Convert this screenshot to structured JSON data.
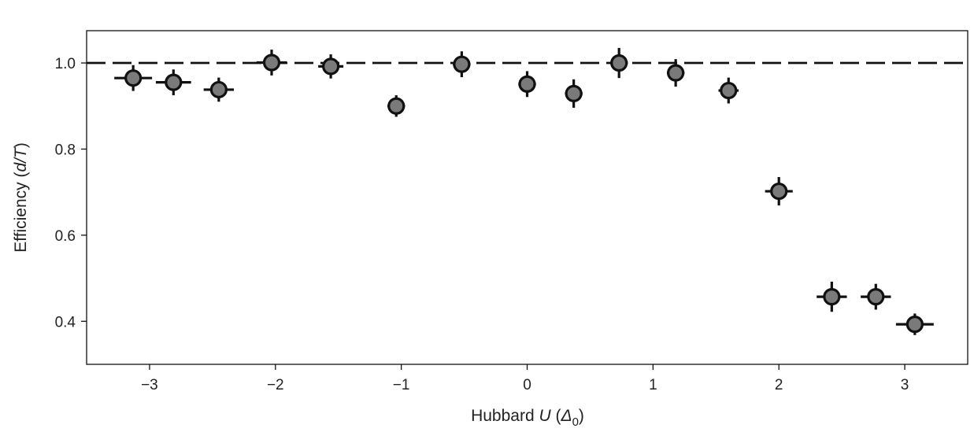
{
  "chart_data": {
    "type": "scatter",
    "xlabel": {
      "prefix": "Hubbard ",
      "var": "U",
      "open": " (",
      "unit_var": "Δ",
      "unit_sub": "0",
      "close": ")"
    },
    "ylabel": {
      "prefix": "Efficiency (",
      "var": "d/T",
      "close": ")"
    },
    "xlim": [
      -3.5,
      3.5
    ],
    "ylim": [
      0.3,
      1.075
    ],
    "xticks": [
      -3,
      -2,
      -1,
      0,
      1,
      2,
      3
    ],
    "xtick_labels": [
      "−3",
      "−2",
      "−1",
      "0",
      "1",
      "2",
      "3"
    ],
    "yticks": [
      0.4,
      0.6,
      0.8,
      1.0
    ],
    "ytick_labels": [
      "0.4",
      "0.6",
      "0.8",
      "1.0"
    ],
    "reference_line": {
      "y": 1.0,
      "style": "dashed"
    },
    "grid": false,
    "marker_fill": "#7a7a7a",
    "marker_edge": "#111111",
    "points": [
      {
        "x": -3.13,
        "y": 0.965,
        "xerr": 0.15,
        "yerr": 0.03
      },
      {
        "x": -2.81,
        "y": 0.955,
        "xerr": 0.14,
        "yerr": 0.03
      },
      {
        "x": -2.45,
        "y": 0.938,
        "xerr": 0.12,
        "yerr": 0.028
      },
      {
        "x": -2.03,
        "y": 1.001,
        "xerr": 0.12,
        "yerr": 0.03
      },
      {
        "x": -1.56,
        "y": 0.992,
        "xerr": 0.1,
        "yerr": 0.028
      },
      {
        "x": -1.04,
        "y": 0.9,
        "xerr": 0.07,
        "yerr": 0.025
      },
      {
        "x": -0.52,
        "y": 0.997,
        "xerr": 0.07,
        "yerr": 0.03
      },
      {
        "x": 0.0,
        "y": 0.951,
        "xerr": 0.07,
        "yerr": 0.03
      },
      {
        "x": 0.37,
        "y": 0.929,
        "xerr": 0.07,
        "yerr": 0.033
      },
      {
        "x": 0.73,
        "y": 1.0,
        "xerr": 0.07,
        "yerr": 0.035
      },
      {
        "x": 1.18,
        "y": 0.977,
        "xerr": 0.07,
        "yerr": 0.032
      },
      {
        "x": 1.6,
        "y": 0.936,
        "xerr": 0.08,
        "yerr": 0.03
      },
      {
        "x": 2.0,
        "y": 0.702,
        "xerr": 0.11,
        "yerr": 0.033
      },
      {
        "x": 2.42,
        "y": 0.457,
        "xerr": 0.12,
        "yerr": 0.035
      },
      {
        "x": 2.77,
        "y": 0.457,
        "xerr": 0.12,
        "yerr": 0.03
      },
      {
        "x": 3.08,
        "y": 0.393,
        "xerr": 0.15,
        "yerr": 0.025
      }
    ]
  }
}
